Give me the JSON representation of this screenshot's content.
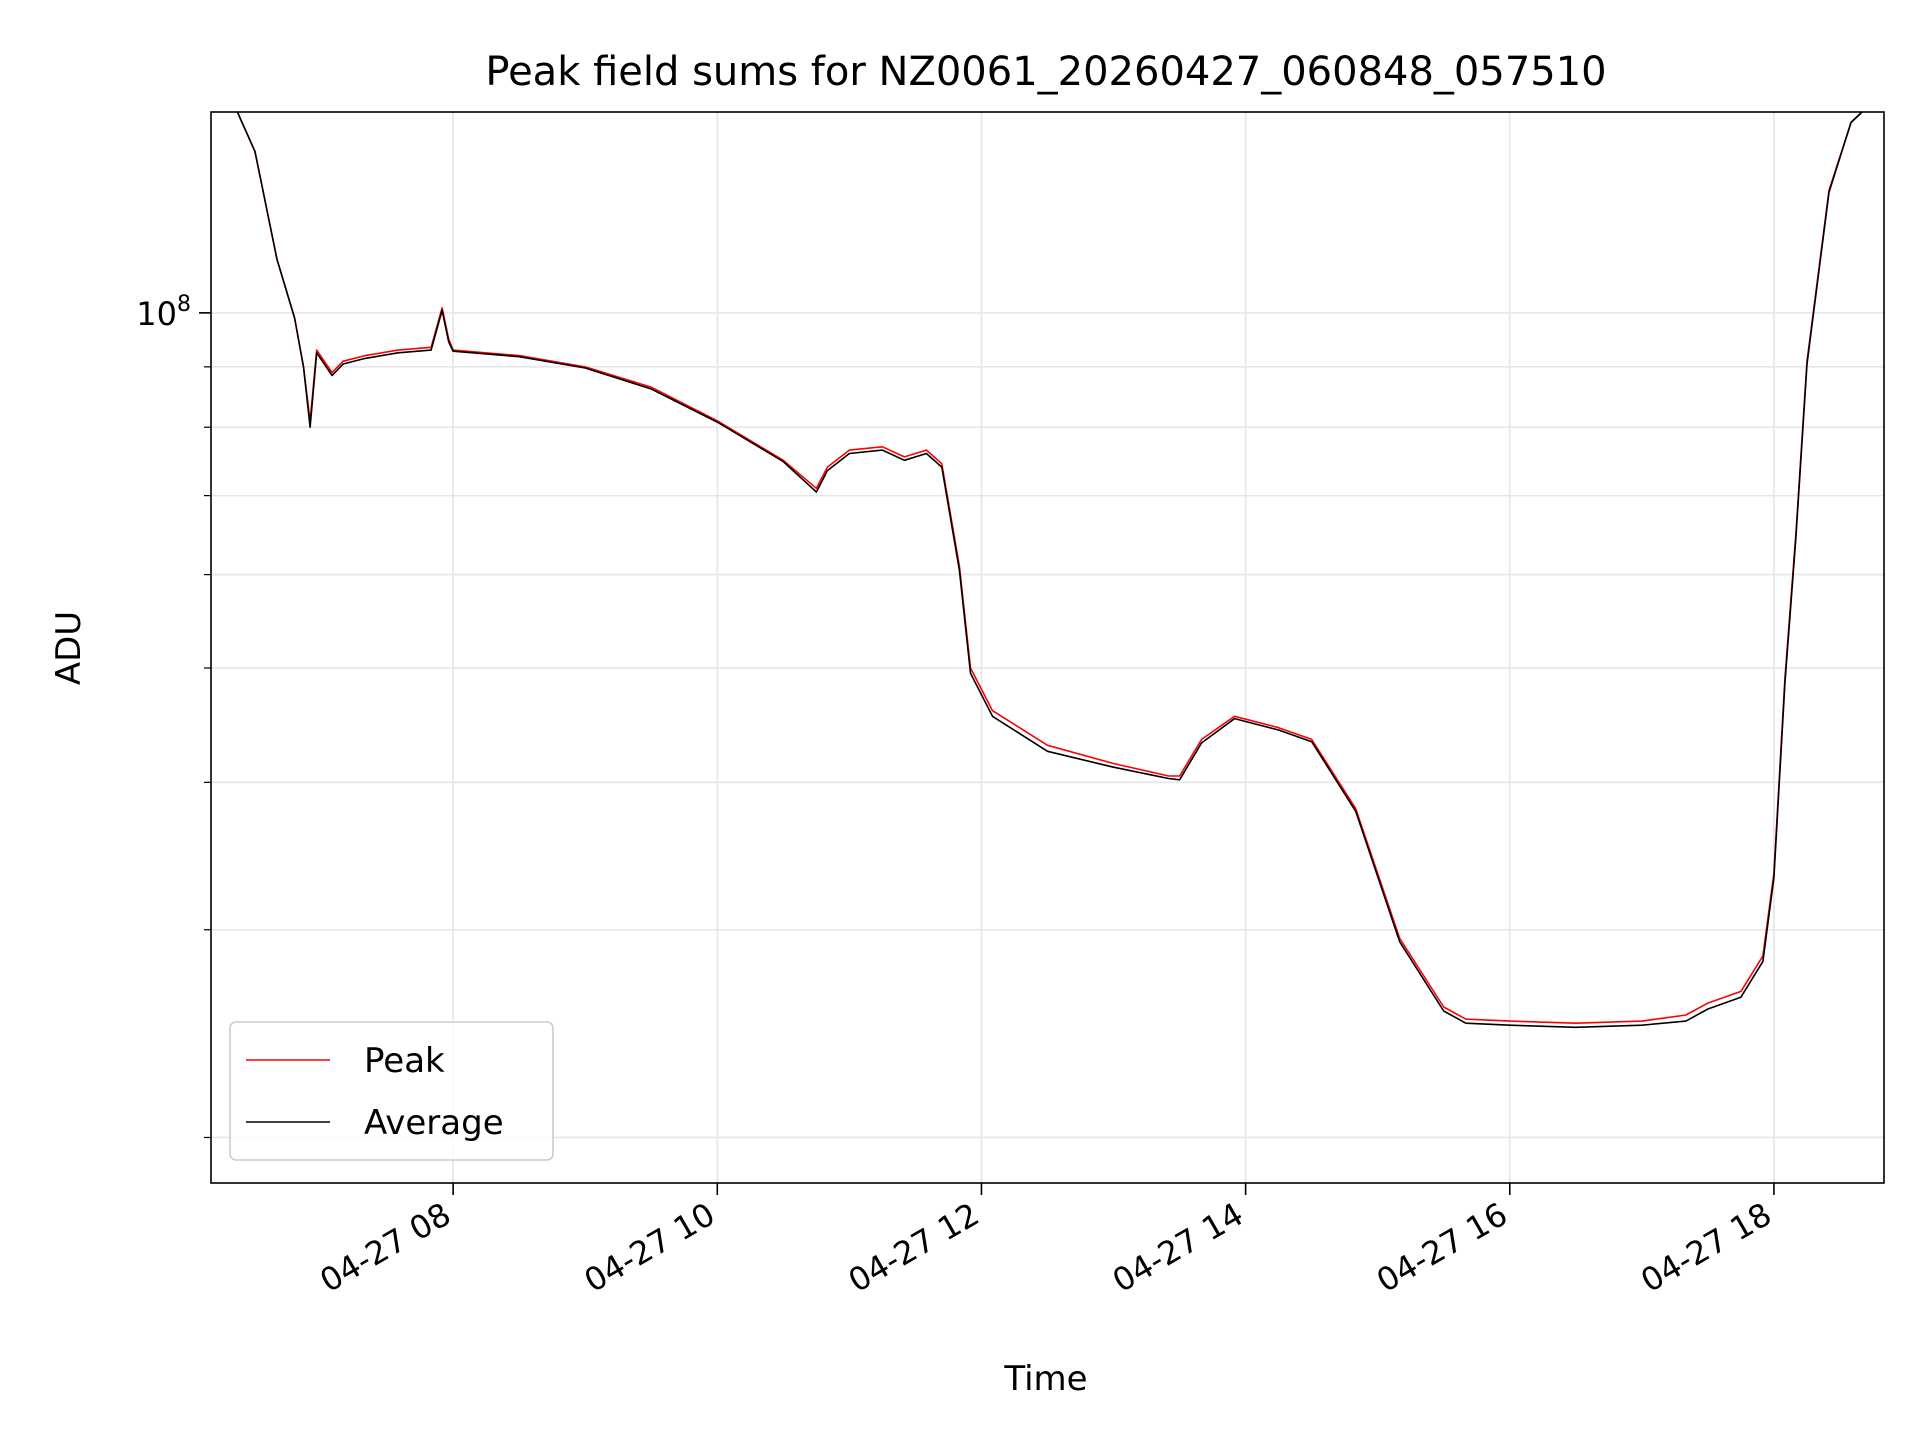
{
  "chart_data": {
    "type": "line",
    "title": "Peak field sums for NZ0061_20260427_060848_057510",
    "xlabel": "Time",
    "ylabel": "ADU",
    "x_scale": "time",
    "y_scale": "log",
    "xlim": [
      "2026-04-27T06:10",
      "2026-04-27T18:50"
    ],
    "ylim": [
      18300000,
      148000000
    ],
    "x_ticks": [
      {
        "value": "2026-04-27T08:00",
        "label": "04-27 08"
      },
      {
        "value": "2026-04-27T10:00",
        "label": "04-27 10"
      },
      {
        "value": "2026-04-27T12:00",
        "label": "04-27 12"
      },
      {
        "value": "2026-04-27T14:00",
        "label": "04-27 14"
      },
      {
        "value": "2026-04-27T16:00",
        "label": "04-27 16"
      },
      {
        "value": "2026-04-27T18:00",
        "label": "04-27 18"
      }
    ],
    "y_ticks": [
      {
        "value": 100000000,
        "label": "10",
        "exponent": "8"
      }
    ],
    "y_minor_ticks": [
      20000000,
      30000000,
      40000000,
      50000000,
      60000000,
      70000000,
      80000000,
      90000000,
      200000000
    ],
    "grid": true,
    "legend_position": "lower-left",
    "colors": {
      "peak": "#ff0000",
      "average": "#000000"
    },
    "series": [
      {
        "name": "Peak",
        "color": "#ff0000",
        "points": [
          [
            "2026-04-27T06:22",
            148000000
          ],
          [
            "2026-04-27T06:30",
            137000000
          ],
          [
            "2026-04-27T06:40",
            111000000
          ],
          [
            "2026-04-27T06:48",
            99000000
          ],
          [
            "2026-04-27T06:52",
            90000000
          ],
          [
            "2026-04-27T06:55",
            81000000
          ],
          [
            "2026-04-27T06:58",
            93000000
          ],
          [
            "2026-04-27T07:05",
            89000000
          ],
          [
            "2026-04-27T07:10",
            91000000
          ],
          [
            "2026-04-27T07:20",
            92000000
          ],
          [
            "2026-04-27T07:35",
            93000000
          ],
          [
            "2026-04-27T07:50",
            93500000
          ],
          [
            "2026-04-27T07:55",
            101000000
          ],
          [
            "2026-04-27T07:58",
            95000000
          ],
          [
            "2026-04-27T08:00",
            93000000
          ],
          [
            "2026-04-27T08:30",
            92000000
          ],
          [
            "2026-04-27T09:00",
            90000000
          ],
          [
            "2026-04-27T09:30",
            86500000
          ],
          [
            "2026-04-27T10:00",
            81000000
          ],
          [
            "2026-04-27T10:30",
            75000000
          ],
          [
            "2026-04-27T10:45",
            71000000
          ],
          [
            "2026-04-27T10:50",
            74000000
          ],
          [
            "2026-04-27T11:00",
            76500000
          ],
          [
            "2026-04-27T11:15",
            77000000
          ],
          [
            "2026-04-27T11:25",
            75500000
          ],
          [
            "2026-04-27T11:35",
            76500000
          ],
          [
            "2026-04-27T11:42",
            74500000
          ],
          [
            "2026-04-27T11:50",
            61000000
          ],
          [
            "2026-04-27T11:55",
            50000000
          ],
          [
            "2026-04-27T12:05",
            46000000
          ],
          [
            "2026-04-27T12:30",
            43000000
          ],
          [
            "2026-04-27T13:00",
            41500000
          ],
          [
            "2026-04-27T13:25",
            40500000
          ],
          [
            "2026-04-27T13:30",
            40500000
          ],
          [
            "2026-04-27T13:40",
            43500000
          ],
          [
            "2026-04-27T13:55",
            45500000
          ],
          [
            "2026-04-27T14:15",
            44500000
          ],
          [
            "2026-04-27T14:30",
            43500000
          ],
          [
            "2026-04-27T14:50",
            38000000
          ],
          [
            "2026-04-27T15:10",
            29500000
          ],
          [
            "2026-04-27T15:30",
            25800000
          ],
          [
            "2026-04-27T15:40",
            25200000
          ],
          [
            "2026-04-27T16:00",
            25100000
          ],
          [
            "2026-04-27T16:30",
            25000000
          ],
          [
            "2026-04-27T17:00",
            25100000
          ],
          [
            "2026-04-27T17:20",
            25400000
          ],
          [
            "2026-04-27T17:30",
            26000000
          ],
          [
            "2026-04-27T17:45",
            26600000
          ],
          [
            "2026-04-27T17:55",
            28500000
          ],
          [
            "2026-04-27T18:00",
            33500000
          ],
          [
            "2026-04-27T18:05",
            49000000
          ],
          [
            "2026-04-27T18:10",
            65000000
          ],
          [
            "2026-04-27T18:15",
            91000000
          ],
          [
            "2026-04-27T18:25",
            127000000
          ],
          [
            "2026-04-27T18:35",
            145000000
          ],
          [
            "2026-04-27T18:40",
            148000000
          ]
        ]
      },
      {
        "name": "Average",
        "color": "#000000",
        "points": [
          [
            "2026-04-27T06:22",
            148000000
          ],
          [
            "2026-04-27T06:30",
            137000000
          ],
          [
            "2026-04-27T06:40",
            111000000
          ],
          [
            "2026-04-27T06:48",
            99000000
          ],
          [
            "2026-04-27T06:52",
            90000000
          ],
          [
            "2026-04-27T06:55",
            80000000
          ],
          [
            "2026-04-27T06:58",
            92500000
          ],
          [
            "2026-04-27T07:05",
            88500000
          ],
          [
            "2026-04-27T07:10",
            90500000
          ],
          [
            "2026-04-27T07:20",
            91500000
          ],
          [
            "2026-04-27T07:35",
            92500000
          ],
          [
            "2026-04-27T07:50",
            93000000
          ],
          [
            "2026-04-27T07:55",
            100500000
          ],
          [
            "2026-04-27T07:58",
            94500000
          ],
          [
            "2026-04-27T08:00",
            92800000
          ],
          [
            "2026-04-27T08:30",
            91800000
          ],
          [
            "2026-04-27T09:00",
            89800000
          ],
          [
            "2026-04-27T09:30",
            86200000
          ],
          [
            "2026-04-27T10:00",
            80800000
          ],
          [
            "2026-04-27T10:30",
            74800000
          ],
          [
            "2026-04-27T10:45",
            70500000
          ],
          [
            "2026-04-27T10:50",
            73500000
          ],
          [
            "2026-04-27T11:00",
            76000000
          ],
          [
            "2026-04-27T11:15",
            76500000
          ],
          [
            "2026-04-27T11:25",
            75000000
          ],
          [
            "2026-04-27T11:35",
            76000000
          ],
          [
            "2026-04-27T11:42",
            74000000
          ],
          [
            "2026-04-27T11:50",
            60500000
          ],
          [
            "2026-04-27T11:55",
            49500000
          ],
          [
            "2026-04-27T12:05",
            45500000
          ],
          [
            "2026-04-27T12:30",
            42500000
          ],
          [
            "2026-04-27T13:00",
            41200000
          ],
          [
            "2026-04-27T13:25",
            40300000
          ],
          [
            "2026-04-27T13:30",
            40200000
          ],
          [
            "2026-04-27T13:40",
            43200000
          ],
          [
            "2026-04-27T13:55",
            45300000
          ],
          [
            "2026-04-27T14:15",
            44300000
          ],
          [
            "2026-04-27T14:30",
            43300000
          ],
          [
            "2026-04-27T14:50",
            37800000
          ],
          [
            "2026-04-27T15:10",
            29300000
          ],
          [
            "2026-04-27T15:30",
            25600000
          ],
          [
            "2026-04-27T15:40",
            25000000
          ],
          [
            "2026-04-27T16:00",
            24900000
          ],
          [
            "2026-04-27T16:30",
            24800000
          ],
          [
            "2026-04-27T17:00",
            24900000
          ],
          [
            "2026-04-27T17:20",
            25100000
          ],
          [
            "2026-04-27T17:30",
            25700000
          ],
          [
            "2026-04-27T17:45",
            26300000
          ],
          [
            "2026-04-27T17:55",
            28200000
          ],
          [
            "2026-04-27T18:00",
            33200000
          ],
          [
            "2026-04-27T18:05",
            48500000
          ],
          [
            "2026-04-27T18:10",
            64500000
          ],
          [
            "2026-04-27T18:15",
            90500000
          ],
          [
            "2026-04-27T18:25",
            126500000
          ],
          [
            "2026-04-27T18:35",
            145000000
          ],
          [
            "2026-04-27T18:40",
            148000000
          ]
        ]
      }
    ]
  }
}
